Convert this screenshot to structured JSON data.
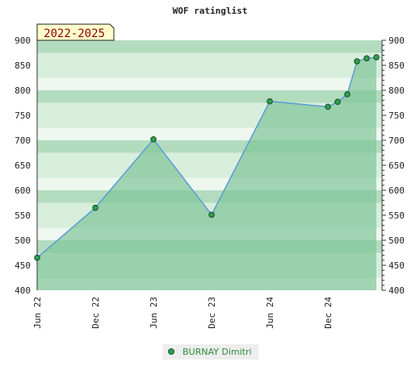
{
  "chart_data": {
    "type": "area",
    "title": "WOF ratinglist",
    "badge": "2022-2025",
    "x_ticks": [
      "Jun 22",
      "Dec 22",
      "Jun 23",
      "Dec 23",
      "Jun 24",
      "Dec 24"
    ],
    "y_ticks": [
      400,
      450,
      500,
      550,
      600,
      650,
      700,
      750,
      800,
      850,
      900
    ],
    "ylim": [
      400,
      900
    ],
    "xlim": [
      "2022-06",
      "2025-04"
    ],
    "grid": "horizontal bands",
    "legend": "bottom-center",
    "series": [
      {
        "name": "BURNAY Dimitri",
        "x": [
          "2022-06",
          "2022-12",
          "2023-06",
          "2023-12",
          "2024-06",
          "2024-12",
          "2025-01",
          "2025-02",
          "2025-03",
          "2025-04",
          "2025-05"
        ],
        "values": [
          465,
          565,
          702,
          551,
          778,
          767,
          777,
          792,
          858,
          864,
          866
        ]
      }
    ],
    "colors": {
      "line": "#5b9bd5",
      "fill": "#7fc497",
      "marker": "#2e9e4f",
      "band_dark": "#b3dcbf",
      "band_light": "#d8eedd",
      "band_pale": "#eef7f0",
      "badge_bg": "#ffffcc"
    }
  }
}
